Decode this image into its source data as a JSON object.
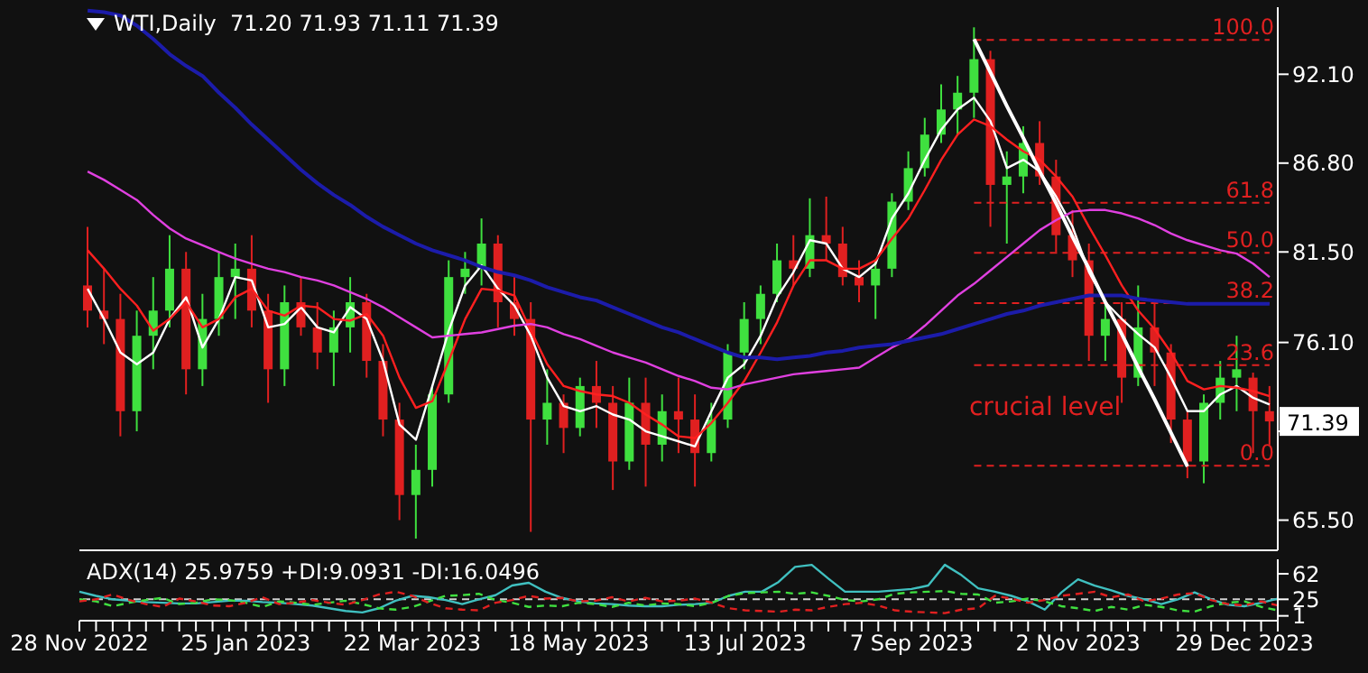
{
  "chart_data": [
    {
      "type": "candlestick",
      "title": "WTI,Daily  71.20 71.93 71.11 71.39",
      "tick_labels": "y",
      "categories": [
        null,
        null,
        null,
        null,
        null,
        null,
        null,
        null,
        null,
        null,
        null,
        null,
        null,
        null,
        null,
        null,
        null,
        null,
        null,
        null,
        null,
        null,
        null,
        null,
        null,
        null,
        null,
        null,
        null,
        null,
        null,
        null,
        null,
        null,
        null,
        null,
        null,
        null,
        null,
        null,
        null,
        null,
        null,
        null,
        null,
        null,
        null,
        null,
        null,
        null,
        null,
        null,
        null,
        null,
        null,
        null,
        null,
        null,
        null,
        null,
        null,
        null,
        null,
        null,
        null,
        null,
        null,
        null,
        null,
        null,
        null,
        null,
        null
      ],
      "ohlc": [
        [
          79.5,
          83,
          77,
          78
        ],
        [
          78,
          80.5,
          76,
          77.5
        ],
        [
          77.5,
          79,
          70.5,
          72
        ],
        [
          72,
          78,
          70.8,
          76.5
        ],
        [
          76.5,
          80,
          74.5,
          78
        ],
        [
          78,
          82.5,
          77,
          80.5
        ],
        [
          80.5,
          81.5,
          73,
          74.5
        ],
        [
          74.5,
          79,
          73.5,
          77.5
        ],
        [
          77.5,
          81.5,
          76.5,
          80
        ],
        [
          80,
          82,
          77.5,
          80.5
        ],
        [
          80.5,
          82.5,
          77,
          78
        ],
        [
          78,
          79,
          72.5,
          74.5
        ],
        [
          74.5,
          79.5,
          73.5,
          78.5
        ],
        [
          78.5,
          80,
          76.5,
          77
        ],
        [
          77,
          78.5,
          74.5,
          75.5
        ],
        [
          75.5,
          78,
          73.5,
          77
        ],
        [
          77,
          80,
          75.5,
          78.5
        ],
        [
          78.5,
          79,
          74,
          75
        ],
        [
          75,
          76,
          70.5,
          71.5
        ],
        [
          71.5,
          72.5,
          65.5,
          67
        ],
        [
          67,
          70,
          64.4,
          68.5
        ],
        [
          68.5,
          73.5,
          67.5,
          73
        ],
        [
          73,
          81,
          72.5,
          80
        ],
        [
          80,
          81.5,
          79,
          80.5
        ],
        [
          80.5,
          83.5,
          79.5,
          82
        ],
        [
          82,
          82.5,
          77,
          78.5
        ],
        [
          78.5,
          80,
          76.5,
          77.5
        ],
        [
          77.5,
          78.5,
          64.8,
          71.5
        ],
        [
          71.5,
          74.5,
          70,
          72.5
        ],
        [
          72.5,
          73,
          69.5,
          71
        ],
        [
          71,
          74,
          70.5,
          73.5
        ],
        [
          73.5,
          75,
          71,
          72.5
        ],
        [
          72.5,
          73.5,
          67.3,
          69
        ],
        [
          69,
          74,
          68.5,
          72.5
        ],
        [
          72.5,
          74,
          67.5,
          70
        ],
        [
          70,
          73,
          69,
          72
        ],
        [
          72,
          74,
          69.5,
          71.5
        ],
        [
          71.5,
          73,
          67.5,
          69.5
        ],
        [
          69.5,
          72.5,
          69,
          71.5
        ],
        [
          71.5,
          76,
          71,
          75.5
        ],
        [
          75.5,
          78.5,
          74.5,
          77.5
        ],
        [
          77.5,
          79.5,
          76,
          79
        ],
        [
          79,
          82,
          78.5,
          81
        ],
        [
          81,
          82.5,
          79.5,
          80.5
        ],
        [
          80.5,
          84.7,
          80,
          82.5
        ],
        [
          82.5,
          84.8,
          81,
          82
        ],
        [
          82,
          83,
          79.5,
          80
        ],
        [
          80,
          81,
          78.5,
          79.5
        ],
        [
          79.5,
          81,
          77.5,
          80.5
        ],
        [
          80.5,
          85,
          80,
          84.5
        ],
        [
          84.5,
          87.5,
          84,
          86.5
        ],
        [
          86.5,
          89.5,
          86,
          88.5
        ],
        [
          88.5,
          91.5,
          88,
          90
        ],
        [
          90,
          92,
          88.5,
          91
        ],
        [
          91,
          94.9,
          89.5,
          93
        ],
        [
          93,
          93.5,
          83,
          85.5
        ],
        [
          85.5,
          87.5,
          82,
          86
        ],
        [
          86,
          89,
          85,
          88
        ],
        [
          88,
          89.3,
          85.5,
          86
        ],
        [
          86,
          87,
          81.5,
          82.5
        ],
        [
          82.5,
          84,
          80,
          81
        ],
        [
          81,
          82,
          75,
          76.5
        ],
        [
          76.5,
          78.5,
          75,
          77.5
        ],
        [
          77.5,
          78.5,
          72.5,
          74
        ],
        [
          74,
          79.5,
          73.5,
          77
        ],
        [
          77,
          78.5,
          73.5,
          75.5
        ],
        [
          75.5,
          76,
          70.1,
          71.5
        ],
        [
          71.5,
          72,
          68,
          69
        ],
        [
          69,
          73,
          67.7,
          72.5
        ],
        [
          72.5,
          75,
          71.5,
          74
        ],
        [
          74,
          76.5,
          72,
          74.5
        ],
        [
          74,
          74.3,
          69.5,
          72
        ],
        [
          72,
          73.5,
          70,
          71.39
        ]
      ],
      "series": [
        {
          "type": "line",
          "color": "#ffffff",
          "values": [
            79.3,
            77.5,
            75.5,
            74.8,
            75.5,
            77.5,
            78.8,
            75.8,
            77.5,
            80,
            79.8,
            77,
            77.2,
            78.2,
            77,
            76.7,
            78.2,
            77.5,
            75,
            71.2,
            70.3,
            73.5,
            76.8,
            79.5,
            80.7,
            79.3,
            78.3,
            76.5,
            74,
            72.3,
            72,
            72.3,
            71.8,
            71.5,
            70.8,
            70.5,
            70.2,
            69.9,
            72,
            74,
            74.8,
            76.5,
            78.8,
            80.3,
            82.2,
            82,
            80.5,
            80,
            80.8,
            83.5,
            85,
            87,
            88.8,
            90,
            90.7,
            89.3,
            86.5,
            87,
            86.3,
            84.8,
            83,
            80.3,
            78.5,
            77.5,
            76.6,
            75.8,
            74,
            72,
            72,
            73,
            73.5,
            72.8,
            72.4
          ]
        },
        {
          "type": "line",
          "color": "#ff2020",
          "values": [
            81.6,
            80.5,
            79.3,
            78.3,
            76.8,
            77.5,
            78.5,
            77,
            77.5,
            78.8,
            79.3,
            78,
            77.7,
            78.3,
            78.2,
            77.5,
            77.4,
            77.8,
            76.5,
            74,
            72.2,
            72.6,
            75,
            77.5,
            79.3,
            79.2,
            78.9,
            76.8,
            74.8,
            73.5,
            73.2,
            73,
            72.9,
            72.5,
            71.8,
            71.2,
            70.5,
            70.4,
            71.3,
            72.5,
            73.8,
            75.5,
            77.3,
            79.5,
            81,
            81,
            80.5,
            80.5,
            81,
            82.3,
            83.5,
            85.2,
            87,
            88.5,
            89.4,
            89,
            88.2,
            87.5,
            87,
            86,
            84.8,
            83,
            81.3,
            79.5,
            78,
            76.9,
            75.5,
            73.8,
            73.3,
            73.5,
            73.4,
            73.2,
            72.9
          ]
        },
        {
          "type": "line",
          "color": "#e040e0",
          "values": [
            86.3,
            85.8,
            85.2,
            84.6,
            83.7,
            82.9,
            82.3,
            81.9,
            81.5,
            81.1,
            80.8,
            80.5,
            80.3,
            80,
            79.8,
            79.5,
            79.1,
            78.7,
            78.2,
            77.6,
            77,
            76.4,
            76.5,
            76.6,
            76.7,
            76.9,
            77.1,
            77.2,
            77,
            76.6,
            76.3,
            75.9,
            75.5,
            75.2,
            74.9,
            74.5,
            74.1,
            73.8,
            73.4,
            73.3,
            73.6,
            73.8,
            74,
            74.2,
            74.3,
            74.4,
            74.5,
            74.6,
            75.2,
            75.8,
            76.3,
            77.1,
            78,
            78.9,
            79.6,
            80.4,
            81.2,
            82,
            82.8,
            83.4,
            83.9,
            84,
            84,
            83.8,
            83.5,
            83.1,
            82.6,
            82.2,
            81.9,
            81.6,
            81.4,
            80.8,
            80
          ]
        },
        {
          "type": "line",
          "color": "#1c1caa",
          "values": [
            95.9,
            95.8,
            95.6,
            95,
            94.2,
            93.3,
            92.6,
            92,
            91,
            90.1,
            89.1,
            88.2,
            87.3,
            86.4,
            85.6,
            84.9,
            84.3,
            83.6,
            83,
            82.5,
            82,
            81.6,
            81.3,
            81,
            80.6,
            80.3,
            80.1,
            79.8,
            79.4,
            79.1,
            78.8,
            78.6,
            78.2,
            77.8,
            77.4,
            77,
            76.7,
            76.3,
            75.9,
            75.5,
            75.2,
            75.2,
            75.1,
            75.2,
            75.3,
            75.5,
            75.6,
            75.8,
            75.9,
            76,
            76.2,
            76.4,
            76.6,
            76.9,
            77.2,
            77.5,
            77.8,
            78,
            78.3,
            78.5,
            78.7,
            78.9,
            78.9,
            78.9,
            78.7,
            78.6,
            78.5,
            78.4,
            78.4,
            78.4,
            78.4,
            78.4,
            78.4
          ]
        },
        {
          "type": "line",
          "color": "#ffffff",
          "values": [
            null,
            null,
            null,
            null,
            null,
            null,
            null,
            null,
            null,
            null,
            null,
            null,
            null,
            null,
            null,
            null,
            null,
            null,
            null,
            null,
            null,
            null,
            null,
            null,
            null,
            null,
            null,
            null,
            null,
            null,
            null,
            null,
            null,
            null,
            null,
            null,
            null,
            null,
            null,
            null,
            null,
            null,
            null,
            null,
            null,
            null,
            null,
            null,
            null,
            null,
            null,
            null,
            null,
            null,
            94.2,
            92.2,
            90.2,
            88.3,
            86.3,
            84.4,
            82.4,
            80.5,
            78.5,
            76.6,
            74.6,
            72.7,
            70.7,
            68.7,
            null,
            null,
            null,
            null,
            null
          ]
        }
      ],
      "ylim": [
        63.7,
        96.1
      ],
      "yticks": [
        {
          "value": 92.1,
          "label": "92.10"
        },
        {
          "value": 86.8,
          "label": "86.80"
        },
        {
          "value": 81.5,
          "label": "81.50"
        },
        {
          "value": 76.1,
          "label": "76.10"
        },
        {
          "value": 70.8,
          "label": null
        },
        {
          "value": 65.5,
          "label": "65.50"
        }
      ],
      "ref_lines": [
        {
          "axis": "y",
          "value": 94.15,
          "color": "#e02020",
          "line_style": "dashed"
        },
        {
          "axis": "y",
          "value": 84.44,
          "color": "#e02020",
          "line_style": "dashed"
        },
        {
          "axis": "y",
          "value": 81.45,
          "color": "#e02020",
          "line_style": "dashed"
        },
        {
          "axis": "y",
          "value": 78.45,
          "color": "#e02020",
          "line_style": "dashed"
        },
        {
          "axis": "y",
          "value": 74.74,
          "color": "#e02020",
          "line_style": "dashed"
        },
        {
          "axis": "y",
          "value": 68.74,
          "color": "#e02020",
          "line_style": "dashed"
        }
      ],
      "annotations": [
        {
          "text": "100.0",
          "y": 94.15
        },
        {
          "text": "61.8",
          "y": 84.44
        },
        {
          "text": "50.0",
          "y": 81.45
        },
        {
          "text": "38.2",
          "y": 78.45
        },
        {
          "text": "23.6",
          "y": 74.74
        },
        {
          "text": "0.0",
          "y": 68.74
        },
        "crucial level",
        {
          "text": "71.39",
          "y": 71.39
        }
      ]
    },
    {
      "type": "line",
      "title": "ADX(14) 25.9759 +DI:9.0931 -DI:16.0496",
      "categories": [
        "28 Nov 2022",
        null,
        null,
        null,
        null,
        null,
        null,
        null,
        null,
        null,
        "25 Jan 2023",
        null,
        null,
        null,
        null,
        null,
        null,
        null,
        null,
        null,
        "22 Mar 2023",
        null,
        null,
        null,
        null,
        null,
        null,
        null,
        null,
        null,
        "18 May 2023",
        null,
        null,
        null,
        null,
        null,
        null,
        null,
        null,
        null,
        "13 Jul 2023",
        null,
        null,
        null,
        null,
        null,
        null,
        null,
        null,
        null,
        "7 Sep 2023",
        null,
        null,
        null,
        null,
        null,
        null,
        null,
        null,
        null,
        "2 Nov 2023",
        null,
        null,
        null,
        null,
        null,
        null,
        null,
        null,
        null,
        "29 Dec 2023",
        null,
        null
      ],
      "series": [
        {
          "color": "#40c0c0",
          "line_style": "solid",
          "values": [
            36,
            30,
            25,
            23,
            21,
            20,
            19,
            19,
            21,
            23,
            23,
            21,
            20,
            18,
            16,
            12,
            8,
            6,
            12,
            23,
            30,
            28,
            24,
            18,
            25,
            31,
            45,
            49,
            36,
            27,
            22,
            19,
            18,
            16,
            15,
            15,
            17,
            18,
            20,
            30,
            36,
            36,
            50,
            72,
            75,
            55,
            36,
            36,
            36,
            38,
            40,
            45,
            75,
            60,
            41,
            36,
            30,
            22,
            10,
            35,
            54,
            45,
            38,
            30,
            25,
            18,
            25,
            35,
            25,
            17,
            15,
            20,
            26
          ]
        },
        {
          "color": "#40e040",
          "line_style": "dashed",
          "values": [
            25,
            22,
            15,
            20,
            24,
            27,
            18,
            20,
            25,
            24,
            20,
            14,
            22,
            20,
            17,
            20,
            23,
            18,
            12,
            10,
            14,
            22,
            30,
            31,
            33,
            24,
            20,
            14,
            16,
            15,
            20,
            18,
            14,
            20,
            16,
            19,
            18,
            15,
            20,
            30,
            34,
            35,
            36,
            33,
            35,
            30,
            24,
            22,
            25,
            33,
            35,
            36,
            37,
            33,
            32,
            20,
            22,
            26,
            22,
            15,
            12,
            8,
            14,
            10,
            17,
            14,
            9,
            7,
            15,
            20,
            22,
            14,
            9
          ]
        },
        {
          "color": "#e02020",
          "line_style": "dashed",
          "values": [
            22,
            25,
            32,
            24,
            18,
            14,
            26,
            22,
            16,
            15,
            20,
            28,
            18,
            20,
            24,
            20,
            17,
            24,
            32,
            36,
            30,
            20,
            12,
            10,
            9,
            20,
            24,
            30,
            26,
            27,
            22,
            23,
            28,
            22,
            27,
            22,
            23,
            26,
            20,
            12,
            9,
            8,
            7,
            10,
            9,
            14,
            18,
            20,
            16,
            9,
            7,
            6,
            5,
            10,
            12,
            30,
            26,
            20,
            24,
            30,
            33,
            36,
            28,
            32,
            22,
            26,
            32,
            34,
            24,
            18,
            16,
            22,
            16
          ]
        }
      ],
      "ylim": [
        -6,
        83
      ],
      "yticks": [
        62,
        25,
        1
      ],
      "ref_lines": [
        {
          "axis": "y",
          "value": 25,
          "label": null,
          "color": "#d0d0d0",
          "line_style": "dashed"
        }
      ]
    }
  ]
}
